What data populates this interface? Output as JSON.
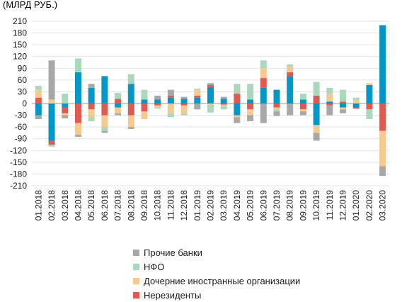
{
  "chart_data": {
    "type": "stacked-bar",
    "ylabel": "(МЛРД РУБ.)",
    "ylim": [
      -210,
      210
    ],
    "yticks": [
      210,
      180,
      150,
      120,
      90,
      60,
      30,
      0,
      -30,
      -60,
      -90,
      -120,
      -150,
      -180,
      -210
    ],
    "grid": true,
    "legend_position": "bottom",
    "categories": [
      "01.2018",
      "02.2018",
      "03.2018",
      "04.2018",
      "05.2018",
      "06.2018",
      "07.2018",
      "08.2018",
      "09.2018",
      "10.2018",
      "11.2018",
      "12.2018",
      "01.2019",
      "02.2019",
      "03.2019",
      "04.2019",
      "05.2019",
      "06.2019",
      "07.2019",
      "08.2019",
      "09.2019",
      "10.2019",
      "11.2019",
      "12.2019",
      "01.2020",
      "02.2020",
      "03.2020"
    ],
    "series": [
      {
        "key": "banks",
        "color": "#0097c9",
        "values": [
          -30,
          -95,
          -10,
          80,
          40,
          70,
          -10,
          50,
          10,
          10,
          15,
          12,
          15,
          42,
          12,
          -30,
          10,
          40,
          35,
          70,
          10,
          -55,
          5,
          -10,
          -10,
          47,
          200
        ]
      },
      {
        "key": "nonres",
        "color": "#e05a52",
        "values": [
          15,
          -10,
          -15,
          -50,
          -15,
          -30,
          12,
          -30,
          -20,
          -5,
          5,
          -5,
          5,
          5,
          -3,
          25,
          -15,
          25,
          -10,
          10,
          -15,
          20,
          -5,
          5,
          -3,
          -15,
          -70
        ]
      },
      {
        "key": "foreign",
        "color": "#f6c98e",
        "values": [
          20,
          10,
          -5,
          -30,
          -20,
          -30,
          -15,
          -30,
          -20,
          -5,
          -25,
          -20,
          15,
          -3,
          -2,
          -5,
          -15,
          25,
          -5,
          15,
          -5,
          -20,
          20,
          -5,
          10,
          5,
          -90
        ]
      },
      {
        "key": "nfo",
        "color": "#a9d8bb",
        "values": [
          10,
          -5,
          25,
          35,
          -10,
          -10,
          15,
          25,
          25,
          -3,
          -10,
          -5,
          3,
          -20,
          -10,
          25,
          40,
          20,
          -5,
          5,
          15,
          35,
          15,
          30,
          5,
          -25,
          0
        ]
      },
      {
        "key": "other",
        "color": "#a8a8a8",
        "values": [
          -10,
          100,
          -8,
          -5,
          10,
          -5,
          -5,
          -5,
          0,
          10,
          15,
          5,
          -15,
          5,
          5,
          -15,
          -15,
          -50,
          -12,
          -30,
          -10,
          -20,
          -25,
          -10,
          0,
          0,
          -25
        ]
      }
    ]
  },
  "legend": [
    {
      "label": "Прочие банки",
      "color": "#a8a8a8"
    },
    {
      "label": "НФО",
      "color": "#a9d8bb"
    },
    {
      "label": "Дочерние иностранные организации",
      "color": "#f6c98e"
    },
    {
      "label": "Нерезиденты",
      "color": "#e05a52"
    }
  ]
}
